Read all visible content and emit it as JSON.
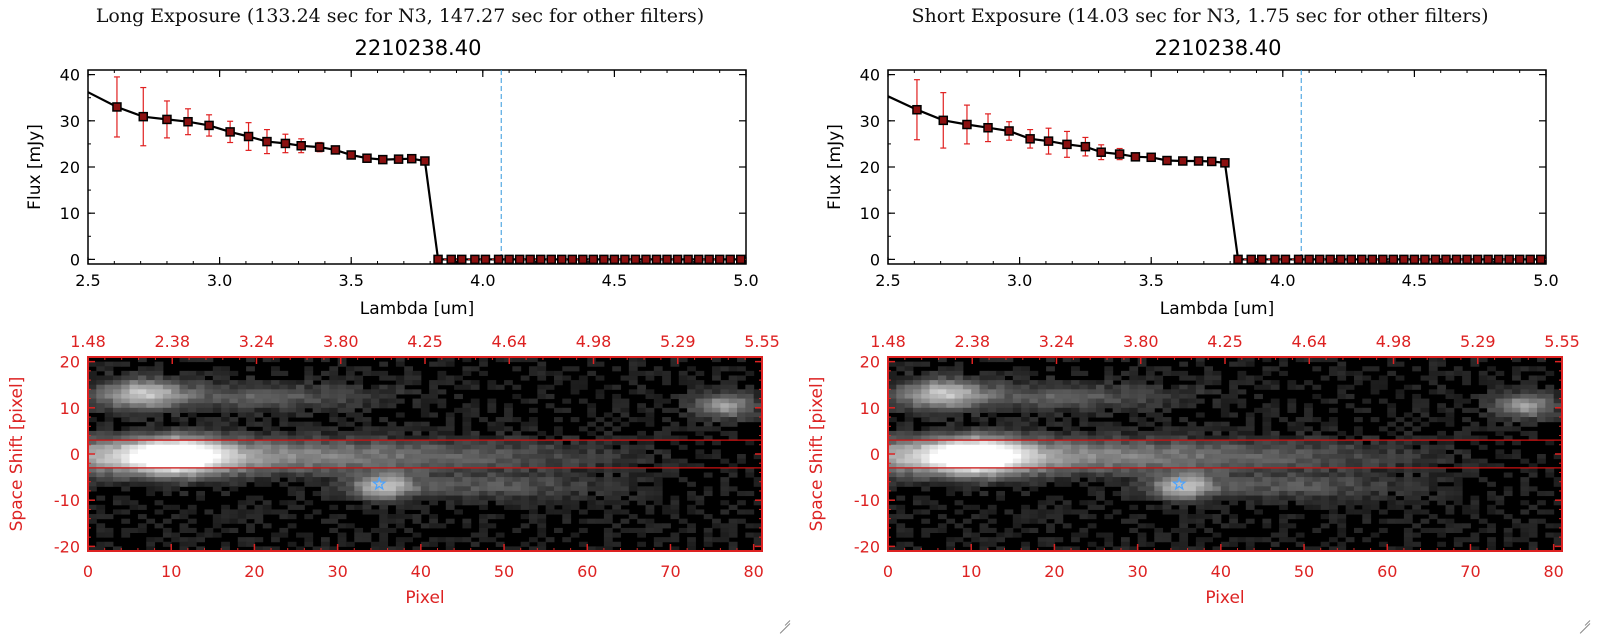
{
  "colors": {
    "axis": "#000000",
    "line": "#000000",
    "marker": "#8b1010",
    "errorbar": "#e02020",
    "cutoff_line": "#3399dd",
    "image_axis": "#dd2222",
    "aperture_line": "#cc1111",
    "source_marker": "#4aa3ff"
  },
  "panels": [
    {
      "id": "long",
      "title": "Long Exposure (133.24 sec for N3, 147.27 sec for other filters)",
      "object_id": "2210238.40"
    },
    {
      "id": "short",
      "title": "Short Exposure (14.03 sec for N3, 1.75 sec for other filters)",
      "object_id": "2210238.40"
    }
  ],
  "chart_data": [
    {
      "type": "line",
      "panel": "long",
      "title": "2210238.40",
      "xlabel": "Lambda [um]",
      "ylabel": "Flux [mJy]",
      "xlim": [
        2.5,
        5.0
      ],
      "ylim": [
        -1,
        41
      ],
      "xticks": [
        "2.5",
        "3.0",
        "3.5",
        "4.0",
        "4.5",
        "5.0"
      ],
      "yticks": [
        "0",
        "10",
        "20",
        "30",
        "40"
      ],
      "cutoff_x": 4.07,
      "x": [
        2.5,
        2.61,
        2.71,
        2.8,
        2.88,
        2.96,
        3.04,
        3.11,
        3.18,
        3.25,
        3.31,
        3.38,
        3.44,
        3.5,
        3.56,
        3.62,
        3.68,
        3.73,
        3.78,
        3.83,
        3.88,
        3.92,
        3.97,
        4.01,
        4.06,
        4.1,
        4.14,
        4.18,
        4.22,
        4.26,
        4.3,
        4.34,
        4.38,
        4.42,
        4.46,
        4.5,
        4.54,
        4.58,
        4.62,
        4.66,
        4.7,
        4.74,
        4.78,
        4.82,
        4.86,
        4.9,
        4.94,
        4.98
      ],
      "y": [
        36.2,
        33.0,
        30.9,
        30.3,
        29.8,
        29.0,
        27.6,
        26.6,
        25.5,
        25.1,
        24.6,
        24.3,
        23.7,
        22.6,
        21.9,
        21.6,
        21.7,
        21.8,
        21.3,
        0,
        0,
        0,
        0,
        0,
        0,
        0,
        0,
        0,
        0,
        0,
        0,
        0,
        0,
        0,
        0,
        0,
        0,
        0,
        0,
        0,
        0,
        0,
        0,
        0,
        0,
        0,
        0,
        0
      ],
      "yerr": [
        0,
        6.5,
        6.3,
        4.0,
        2.8,
        2.3,
        2.3,
        3.0,
        2.6,
        2.0,
        1.5,
        1.0,
        0.8,
        0.6,
        0.6,
        0.5,
        0.5,
        0.5,
        0.5,
        0,
        0,
        0,
        0,
        0,
        0,
        0,
        0,
        0,
        0,
        0,
        0,
        0,
        0,
        0,
        0,
        0,
        0,
        0,
        0,
        0,
        0,
        0,
        0,
        0,
        0,
        0,
        0,
        0
      ]
    },
    {
      "type": "heatmap",
      "panel": "long",
      "xlabel": "Pixel",
      "ylabel": "Space Shift [pixel]",
      "xlim": [
        0,
        81
      ],
      "ylim": [
        -21,
        21
      ],
      "xticks": [
        "0",
        "10",
        "20",
        "30",
        "40",
        "50",
        "60",
        "70",
        "80"
      ],
      "yticks": [
        "-20",
        "-10",
        "0",
        "10",
        "20"
      ],
      "top_ticks": [
        "1.48",
        "2.38",
        "3.24",
        "3.80",
        "4.25",
        "4.64",
        "4.98",
        "5.29",
        "5.55"
      ],
      "aperture_lines": [
        3,
        -3
      ],
      "source_marker": {
        "x": 35,
        "y": -6.5
      }
    },
    {
      "type": "line",
      "panel": "short",
      "title": "2210238.40",
      "xlabel": "Lambda [um]",
      "ylabel": "Flux [mJy]",
      "xlim": [
        2.5,
        5.0
      ],
      "ylim": [
        -1,
        41
      ],
      "xticks": [
        "2.5",
        "3.0",
        "3.5",
        "4.0",
        "4.5",
        "5.0"
      ],
      "yticks": [
        "0",
        "10",
        "20",
        "30",
        "40"
      ],
      "cutoff_x": 4.07,
      "x": [
        2.5,
        2.61,
        2.71,
        2.8,
        2.88,
        2.96,
        3.04,
        3.11,
        3.18,
        3.25,
        3.31,
        3.38,
        3.44,
        3.5,
        3.56,
        3.62,
        3.68,
        3.73,
        3.78,
        3.83,
        3.88,
        3.92,
        3.97,
        4.01,
        4.06,
        4.1,
        4.14,
        4.18,
        4.22,
        4.26,
        4.3,
        4.34,
        4.38,
        4.42,
        4.46,
        4.5,
        4.54,
        4.58,
        4.62,
        4.66,
        4.7,
        4.74,
        4.78,
        4.82,
        4.86,
        4.9,
        4.94,
        4.98
      ],
      "y": [
        35.3,
        32.4,
        30.1,
        29.2,
        28.5,
        27.8,
        26.1,
        25.6,
        24.9,
        24.4,
        23.2,
        22.8,
        22.2,
        22.1,
        21.4,
        21.3,
        21.3,
        21.2,
        20.9,
        0,
        0,
        0,
        0,
        0,
        0,
        0,
        0,
        0,
        0,
        0,
        0,
        0,
        0,
        0,
        0,
        0,
        0,
        0,
        0,
        0,
        0,
        0,
        0,
        0,
        0,
        0,
        0,
        0
      ],
      "yerr": [
        0,
        6.5,
        6.0,
        4.2,
        3.0,
        2.0,
        2.0,
        2.8,
        2.8,
        2.0,
        1.6,
        1.2,
        0.8,
        0.7,
        0.6,
        0.5,
        0.5,
        0.5,
        0.5,
        0,
        0,
        0,
        0,
        0,
        0,
        0,
        0,
        0,
        0,
        0,
        0,
        0,
        0,
        0,
        0,
        0,
        0,
        0,
        0,
        0,
        0,
        0,
        0,
        0,
        0,
        0,
        0,
        0
      ]
    },
    {
      "type": "heatmap",
      "panel": "short",
      "xlabel": "Pixel",
      "ylabel": "Space Shift [pixel]",
      "xlim": [
        0,
        81
      ],
      "ylim": [
        -21,
        21
      ],
      "xticks": [
        "0",
        "10",
        "20",
        "30",
        "40",
        "50",
        "60",
        "70",
        "80"
      ],
      "yticks": [
        "-20",
        "-10",
        "0",
        "10",
        "20"
      ],
      "top_ticks": [
        "1.48",
        "2.38",
        "3.24",
        "3.80",
        "4.25",
        "4.64",
        "4.98",
        "5.29",
        "5.55"
      ],
      "aperture_lines": [
        3,
        -3
      ],
      "source_marker": {
        "x": 35,
        "y": -6.5
      }
    }
  ]
}
